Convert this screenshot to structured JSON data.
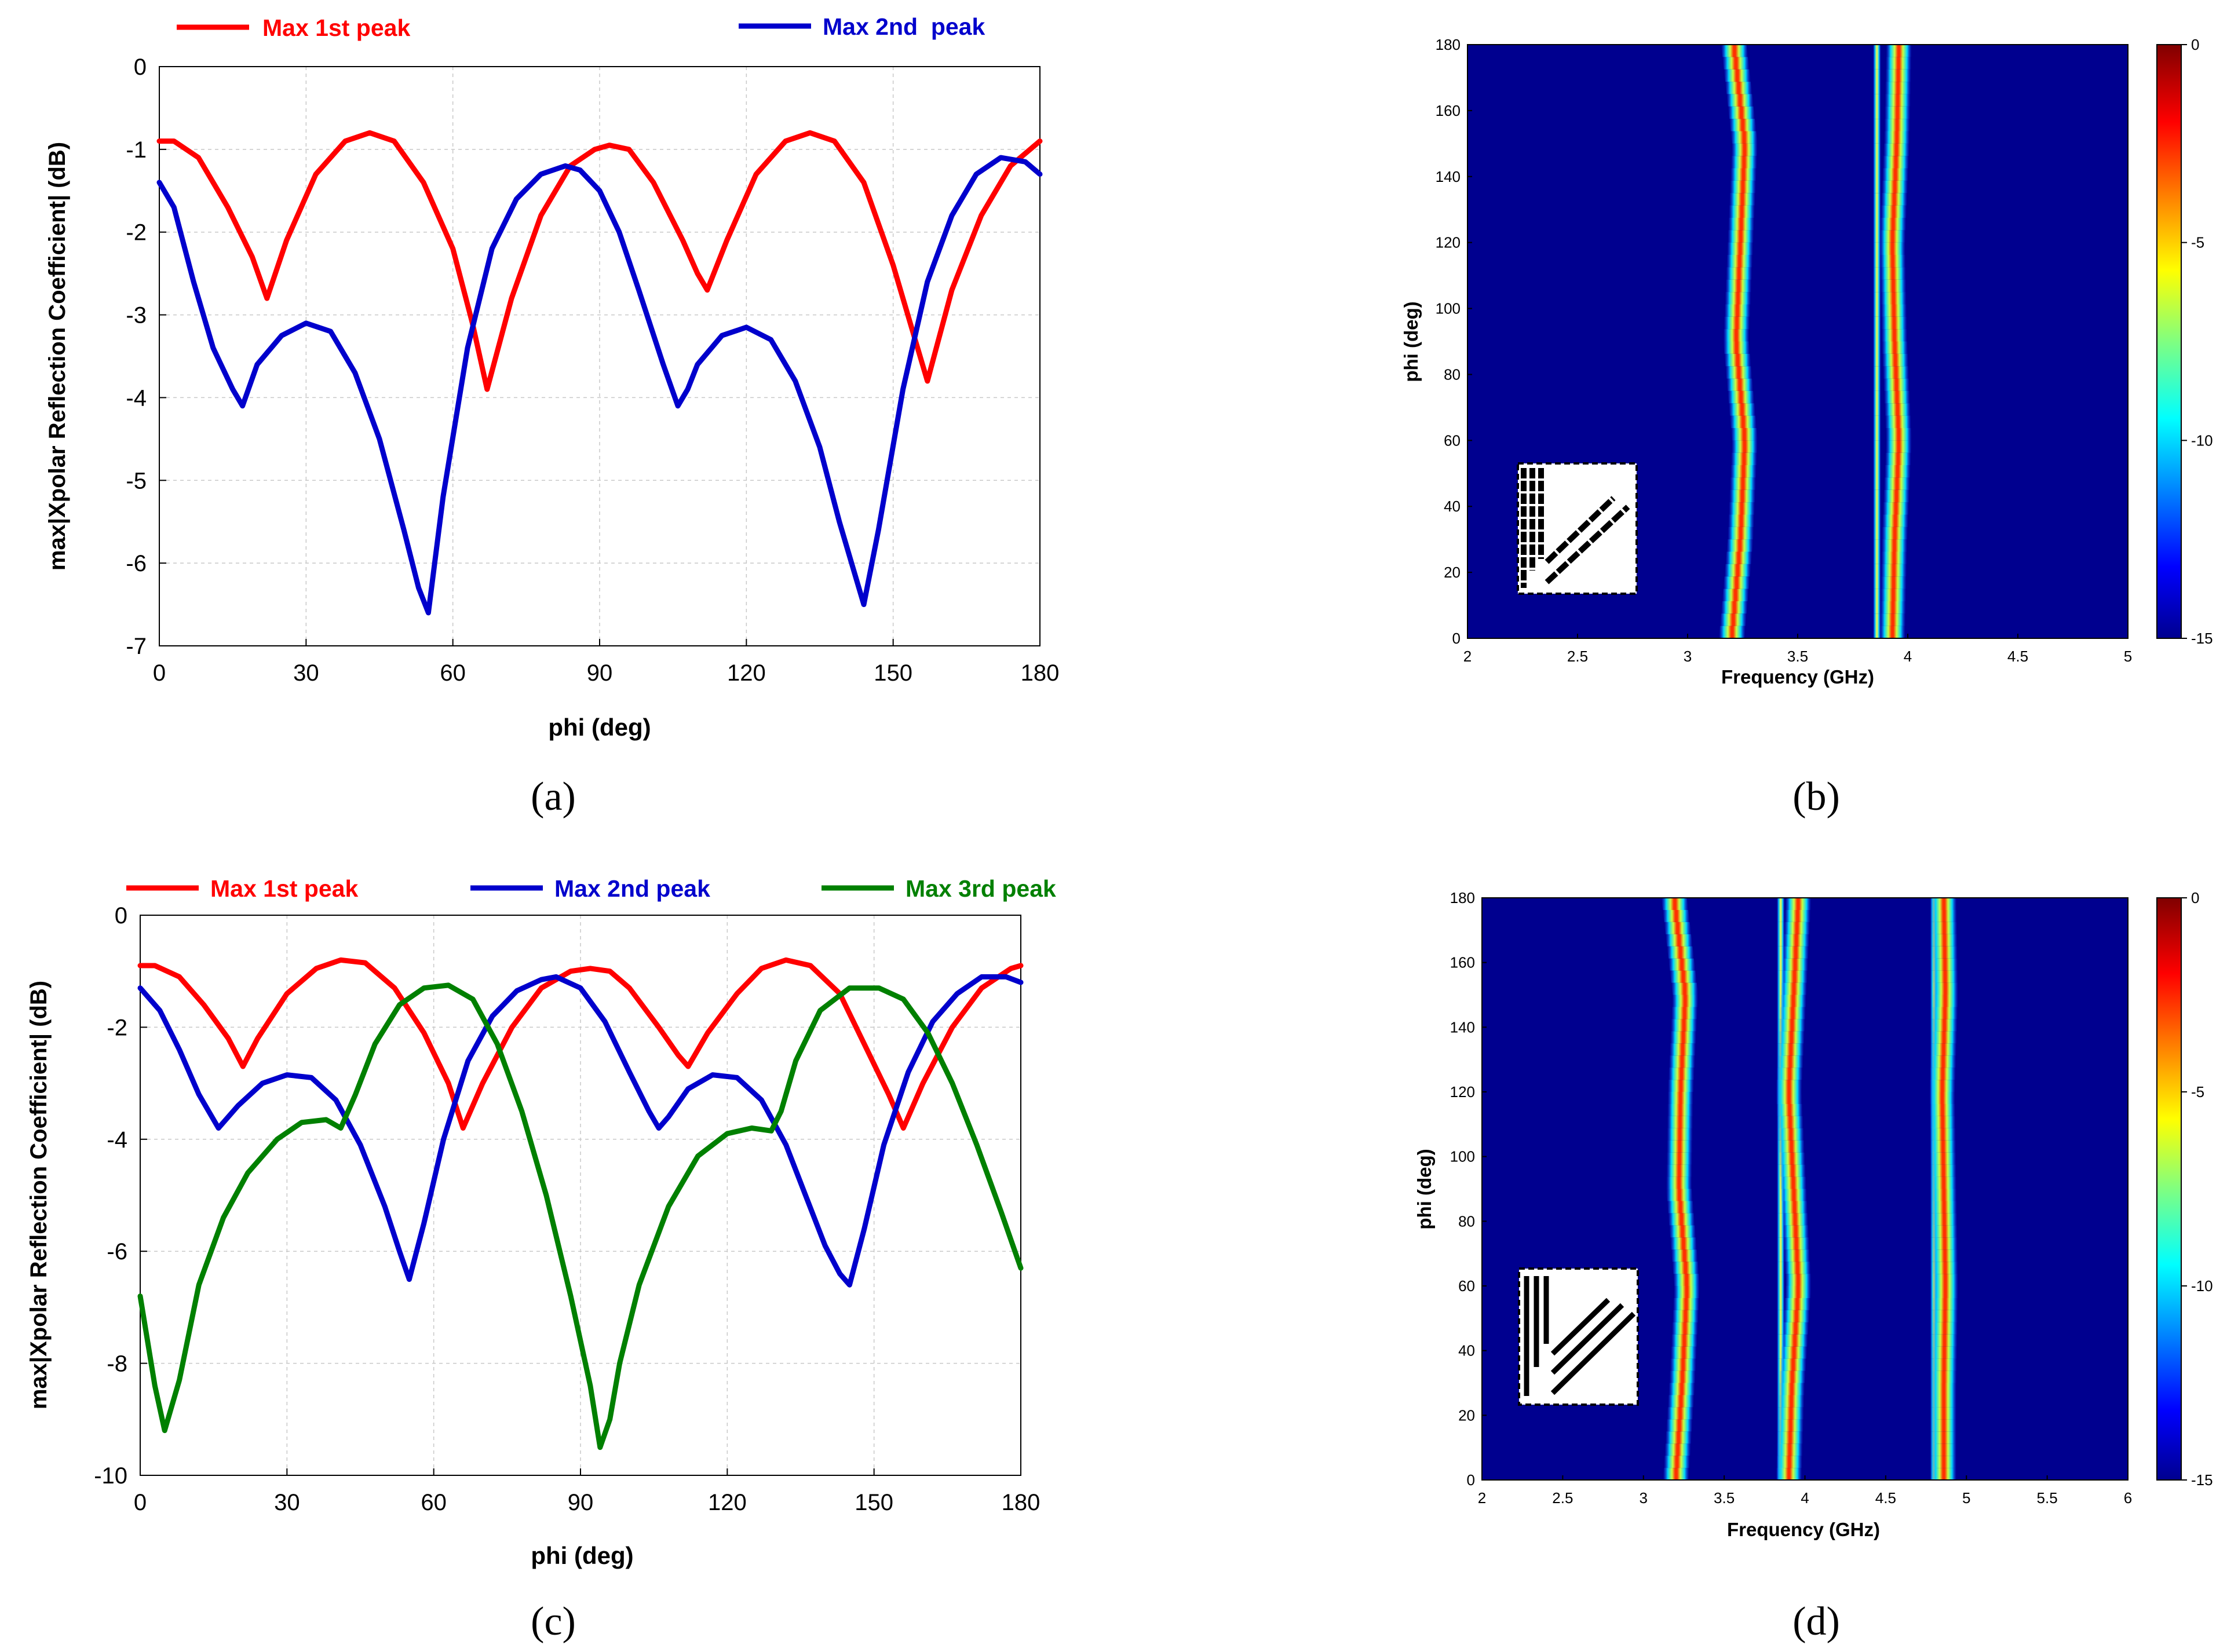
{
  "panels": [
    {
      "id": "a",
      "caption": "(a)",
      "chart_data": {
        "type": "line",
        "title": "",
        "xlabel": "phi (deg)",
        "ylabel": "max|Xpolar Reflection Coefficient| (dB)",
        "xlim": [
          0,
          180
        ],
        "ylim": [
          -7,
          0
        ],
        "xticks": [
          0,
          30,
          60,
          90,
          120,
          150,
          180
        ],
        "yticks": [
          0,
          -1,
          -2,
          -3,
          -4,
          -5,
          -6,
          -7
        ],
        "grid": true,
        "legend": "top, outside",
        "series": [
          {
            "name": "Max 1st peak",
            "color": "#ff0000",
            "x": [
              0,
              3,
              8,
              14,
              19,
              22,
              26,
              32,
              38,
              43,
              48,
              54,
              60,
              64,
              67,
              72,
              78,
              84,
              89,
              92,
              96,
              101,
              107,
              110,
              112,
              116,
              122,
              128,
              133,
              138,
              144,
              150,
              154,
              157,
              162,
              168,
              174,
              180
            ],
            "y": [
              -0.9,
              -0.9,
              -1.1,
              -1.7,
              -2.3,
              -2.8,
              -2.1,
              -1.3,
              -0.9,
              -0.8,
              -0.9,
              -1.4,
              -2.2,
              -3.1,
              -3.9,
              -2.8,
              -1.8,
              -1.2,
              -1.0,
              -0.95,
              -1.0,
              -1.4,
              -2.1,
              -2.5,
              -2.7,
              -2.1,
              -1.3,
              -0.9,
              -0.8,
              -0.9,
              -1.4,
              -2.4,
              -3.2,
              -3.8,
              -2.7,
              -1.8,
              -1.2,
              -0.9
            ]
          },
          {
            "name": "Max 2nd  peak",
            "color": "#0000cc",
            "x": [
              0,
              3,
              7,
              11,
              15,
              17,
              20,
              25,
              30,
              35,
              40,
              45,
              50,
              53,
              55,
              58,
              63,
              68,
              73,
              78,
              83,
              86,
              90,
              94,
              98,
              103,
              106,
              108,
              110,
              115,
              120,
              125,
              130,
              135,
              139,
              142,
              144,
              147,
              152,
              157,
              162,
              167,
              172,
              177,
              180
            ],
            "y": [
              -1.4,
              -1.7,
              -2.6,
              -3.4,
              -3.9,
              -4.1,
              -3.6,
              -3.25,
              -3.1,
              -3.2,
              -3.7,
              -4.5,
              -5.6,
              -6.3,
              -6.6,
              -5.2,
              -3.4,
              -2.2,
              -1.6,
              -1.3,
              -1.2,
              -1.25,
              -1.5,
              -2.0,
              -2.7,
              -3.6,
              -4.1,
              -3.9,
              -3.6,
              -3.25,
              -3.15,
              -3.3,
              -3.8,
              -4.6,
              -5.5,
              -6.1,
              -6.5,
              -5.6,
              -3.9,
              -2.6,
              -1.8,
              -1.3,
              -1.1,
              -1.15,
              -1.3
            ]
          }
        ]
      }
    },
    {
      "id": "b",
      "caption": "(b)",
      "chart_data": {
        "type": "heatmap",
        "title": "",
        "xlabel": "Frequency (GHz)",
        "ylabel": "phi (deg)",
        "xlim": [
          2,
          5
        ],
        "ylim": [
          0,
          180
        ],
        "xticks": [
          "2",
          "2.5",
          "3",
          "3.5",
          "4",
          "4.5",
          "5"
        ],
        "yticks": [
          "0",
          "20",
          "40",
          "60",
          "80",
          "100",
          "120",
          "140",
          "160",
          "180"
        ],
        "colorbar": {
          "range": [
            -15,
            0
          ],
          "ticks": [
            "0",
            "-5",
            "-10",
            "-15"
          ],
          "colormap": "jet"
        },
        "resonance_tracks": [
          {
            "name": "resonance 1",
            "phi": [
              0,
              30,
              60,
              90,
              120,
              150,
              180
            ],
            "freq_ghz": [
              3.2,
              3.24,
              3.26,
              3.22,
              3.24,
              3.26,
              3.21
            ]
          },
          {
            "name": "resonance 2",
            "phi": [
              0,
              60,
              120,
              180
            ],
            "freq_ghz": [
              3.86,
              3.86,
              3.86,
              3.86
            ]
          },
          {
            "name": "resonance 3",
            "phi": [
              0,
              30,
              60,
              90,
              120,
              150,
              180
            ],
            "freq_ghz": [
              3.93,
              3.94,
              3.96,
              3.94,
              3.93,
              3.95,
              3.96
            ]
          }
        ],
        "inset": "three-line resonator unit cell"
      }
    },
    {
      "id": "c",
      "caption": "(c)",
      "chart_data": {
        "type": "line",
        "title": "",
        "xlabel": "phi (deg)",
        "ylabel": "max|Xpolar Reflection Coefficient| (dB)",
        "xlim": [
          0,
          180
        ],
        "ylim": [
          -10,
          0
        ],
        "xticks": [
          0,
          30,
          60,
          90,
          120,
          150,
          180
        ],
        "yticks": [
          0,
          -2,
          -4,
          -6,
          -8,
          -10
        ],
        "grid": true,
        "legend": "top, outside",
        "series": [
          {
            "name": "Max 1st peak",
            "color": "#ff0000",
            "x": [
              0,
              3,
              8,
              13,
              18,
              21,
              24,
              30,
              36,
              41,
              46,
              52,
              58,
              63,
              66,
              70,
              76,
              82,
              88,
              92,
              96,
              100,
              106,
              110,
              112,
              116,
              122,
              127,
              132,
              137,
              143,
              148,
              153,
              156,
              160,
              166,
              172,
              178,
              180
            ],
            "y": [
              -0.9,
              -0.9,
              -1.1,
              -1.6,
              -2.2,
              -2.7,
              -2.2,
              -1.4,
              -0.95,
              -0.8,
              -0.85,
              -1.3,
              -2.1,
              -3.0,
              -3.8,
              -3.0,
              -2.0,
              -1.3,
              -1.0,
              -0.95,
              -1.0,
              -1.3,
              -2.0,
              -2.5,
              -2.7,
              -2.1,
              -1.4,
              -0.95,
              -0.8,
              -0.9,
              -1.4,
              -2.3,
              -3.2,
              -3.8,
              -3.0,
              -2.0,
              -1.3,
              -0.95,
              -0.9
            ]
          },
          {
            "name": "Max 2nd peak",
            "color": "#0000cc",
            "x": [
              0,
              4,
              8,
              12,
              16,
              20,
              25,
              30,
              35,
              40,
              45,
              50,
              53,
              55,
              58,
              62,
              67,
              72,
              77,
              82,
              85,
              90,
              95,
              100,
              104,
              106,
              108,
              112,
              117,
              122,
              127,
              132,
              136,
              140,
              143,
              145,
              148,
              152,
              157,
              162,
              167,
              172,
              177,
              180
            ],
            "y": [
              -1.3,
              -1.7,
              -2.4,
              -3.2,
              -3.8,
              -3.4,
              -3.0,
              -2.85,
              -2.9,
              -3.3,
              -4.1,
              -5.2,
              -6.0,
              -6.5,
              -5.5,
              -4.0,
              -2.6,
              -1.8,
              -1.35,
              -1.15,
              -1.1,
              -1.3,
              -1.9,
              -2.8,
              -3.5,
              -3.8,
              -3.6,
              -3.1,
              -2.85,
              -2.9,
              -3.3,
              -4.1,
              -5.0,
              -5.9,
              -6.4,
              -6.6,
              -5.6,
              -4.1,
              -2.8,
              -1.9,
              -1.4,
              -1.1,
              -1.1,
              -1.2
            ]
          },
          {
            "name": "Max 3rd peak",
            "color": "#008000",
            "x": [
              0,
              3,
              5,
              8,
              12,
              17,
              22,
              28,
              33,
              38,
              41,
              44,
              48,
              53,
              58,
              63,
              68,
              73,
              78,
              83,
              88,
              92,
              94,
              96,
              98,
              102,
              108,
              114,
              120,
              125,
              129,
              131,
              134,
              139,
              145,
              151,
              156,
              161,
              166,
              171,
              176,
              180
            ],
            "y": [
              -6.8,
              -8.4,
              -9.2,
              -8.3,
              -6.6,
              -5.4,
              -4.6,
              -4.0,
              -3.7,
              -3.65,
              -3.8,
              -3.2,
              -2.3,
              -1.6,
              -1.3,
              -1.25,
              -1.5,
              -2.3,
              -3.5,
              -5.0,
              -6.8,
              -8.4,
              -9.5,
              -9.0,
              -8.0,
              -6.6,
              -5.2,
              -4.3,
              -3.9,
              -3.8,
              -3.85,
              -3.5,
              -2.6,
              -1.7,
              -1.3,
              -1.3,
              -1.5,
              -2.1,
              -3.0,
              -4.1,
              -5.3,
              -6.3
            ]
          }
        ]
      }
    },
    {
      "id": "d",
      "caption": "(d)",
      "chart_data": {
        "type": "heatmap",
        "title": "",
        "xlabel": "Frequency (GHz)",
        "ylabel": "phi (deg)",
        "xlim": [
          2,
          6
        ],
        "ylim": [
          0,
          180
        ],
        "xticks": [
          "2",
          "2.5",
          "3",
          "3.5",
          "4",
          "4.5",
          "5",
          "5.5",
          "6"
        ],
        "yticks": [
          "0",
          "20",
          "40",
          "60",
          "80",
          "100",
          "120",
          "140",
          "160",
          "180"
        ],
        "colorbar": {
          "range": [
            -15,
            0
          ],
          "ticks": [
            "0",
            "-5",
            "-10",
            "-15"
          ],
          "colormap": "jet"
        },
        "resonance_tracks": [
          {
            "name": "resonance 1",
            "phi": [
              0,
              30,
              60,
              90,
              120,
              150,
              180
            ],
            "freq_ghz": [
              3.2,
              3.24,
              3.27,
              3.22,
              3.23,
              3.26,
              3.19
            ]
          },
          {
            "name": "resonance 2",
            "phi": [
              0,
              60,
              120,
              180
            ],
            "freq_ghz": [
              3.85,
              3.85,
              3.85,
              3.85
            ]
          },
          {
            "name": "resonance 3",
            "phi": [
              0,
              30,
              60,
              90,
              120,
              150,
              180
            ],
            "freq_ghz": [
              3.9,
              3.92,
              3.96,
              3.93,
              3.9,
              3.93,
              3.96
            ]
          },
          {
            "name": "resonance 4",
            "phi": [
              0,
              60,
              120,
              180
            ],
            "freq_ghz": [
              4.8,
              4.8,
              4.8,
              4.8
            ]
          },
          {
            "name": "resonance 5",
            "phi": [
              0,
              30,
              60,
              90,
              120,
              150,
              180
            ],
            "freq_ghz": [
              4.86,
              4.86,
              4.87,
              4.86,
              4.85,
              4.87,
              4.86
            ]
          }
        ],
        "inset": "five-line resonator unit cell"
      }
    }
  ]
}
